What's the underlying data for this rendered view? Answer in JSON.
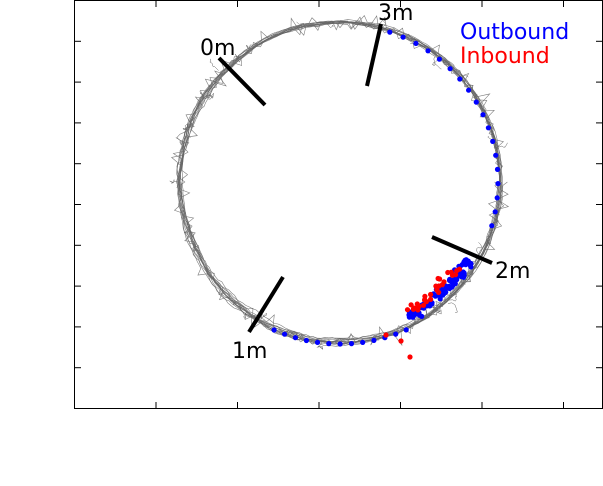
{
  "chart_data": {
    "type": "scatter",
    "title": "",
    "xlabel": "",
    "ylabel": "",
    "grid": false,
    "legend_position": "top-right",
    "series": [
      {
        "name": "Outbound",
        "color": "#0000ff"
      },
      {
        "name": "Inbound",
        "color": "#ff0000"
      }
    ],
    "track_color": "#666666",
    "distance_markers": [
      {
        "label": "0m"
      },
      {
        "label": "3m"
      },
      {
        "label": "2m"
      },
      {
        "label": "1m"
      }
    ]
  }
}
